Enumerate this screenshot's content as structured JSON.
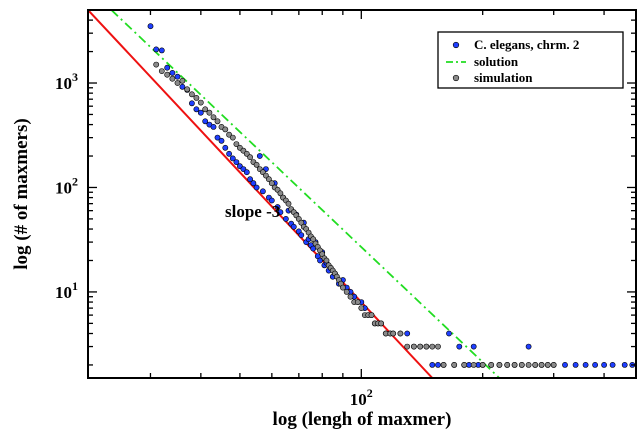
{
  "chart_data": {
    "type": "scatter",
    "xlabel": "log (lengh of maxmer)",
    "ylabel": "log (# of maxmers)",
    "xscale": "log",
    "yscale": "log",
    "xlim": [
      21,
      480
    ],
    "ylim": [
      1.5,
      5000
    ],
    "x_tick_labels": [
      {
        "value": 100,
        "base": "10",
        "exp": "2"
      }
    ],
    "y_tick_labels": [
      {
        "value": 10,
        "base": "10",
        "exp": "1"
      },
      {
        "value": 100,
        "base": "10",
        "exp": "2"
      },
      {
        "value": 1000,
        "base": "10",
        "exp": "3"
      }
    ],
    "grid": false,
    "legend_position": "top-right",
    "annotations": [
      {
        "text": "slope -3",
        "x": 60,
        "y": 55
      }
    ],
    "series": [
      {
        "name": "C. elegans, chrm. 2",
        "kind": "scatter",
        "color": "#1f3fff",
        "points": [
          [
            30,
            3500
          ],
          [
            31,
            2100
          ],
          [
            32,
            2050
          ],
          [
            33,
            1400
          ],
          [
            34,
            1250
          ],
          [
            35,
            1150
          ],
          [
            36,
            920
          ],
          [
            37,
            860
          ],
          [
            38,
            640
          ],
          [
            39,
            560
          ],
          [
            40,
            520
          ],
          [
            41,
            430
          ],
          [
            42,
            400
          ],
          [
            43,
            380
          ],
          [
            44,
            300
          ],
          [
            45,
            280
          ],
          [
            46,
            240
          ],
          [
            47,
            210
          ],
          [
            48,
            190
          ],
          [
            49,
            175
          ],
          [
            50,
            160
          ],
          [
            51,
            150
          ],
          [
            52,
            140
          ],
          [
            53,
            120
          ],
          [
            54,
            110
          ],
          [
            55,
            100
          ],
          [
            56,
            200
          ],
          [
            57,
            92
          ],
          [
            58,
            150
          ],
          [
            59,
            80
          ],
          [
            60,
            75
          ],
          [
            61,
            110
          ],
          [
            62,
            65
          ],
          [
            63,
            58
          ],
          [
            64,
            80
          ],
          [
            65,
            50
          ],
          [
            66,
            60
          ],
          [
            67,
            45
          ],
          [
            68,
            42
          ],
          [
            69,
            55
          ],
          [
            70,
            38
          ],
          [
            71,
            35
          ],
          [
            72,
            46
          ],
          [
            73,
            30
          ],
          [
            74,
            32
          ],
          [
            75,
            28
          ],
          [
            76,
            26
          ],
          [
            77,
            30
          ],
          [
            78,
            22
          ],
          [
            79,
            20
          ],
          [
            80,
            24
          ],
          [
            81,
            18
          ],
          [
            82,
            19
          ],
          [
            83,
            16
          ],
          [
            84,
            17
          ],
          [
            85,
            14
          ],
          [
            86,
            15
          ],
          [
            88,
            12
          ],
          [
            90,
            13
          ],
          [
            92,
            11
          ],
          [
            94,
            10
          ],
          [
            96,
            9
          ],
          [
            98,
            8
          ],
          [
            100,
            8
          ],
          [
            102,
            7
          ],
          [
            104,
            6
          ],
          [
            106,
            6
          ],
          [
            108,
            5
          ],
          [
            110,
            5
          ],
          [
            112,
            5
          ],
          [
            115,
            4
          ],
          [
            118,
            4
          ],
          [
            120,
            4
          ],
          [
            125,
            4
          ],
          [
            130,
            4
          ],
          [
            135,
            3
          ],
          [
            140,
            3
          ],
          [
            145,
            3
          ],
          [
            150,
            2
          ],
          [
            155,
            2
          ],
          [
            160,
            2
          ],
          [
            165,
            4
          ],
          [
            170,
            2
          ],
          [
            175,
            3
          ],
          [
            180,
            2
          ],
          [
            185,
            2
          ],
          [
            190,
            3
          ],
          [
            195,
            2
          ],
          [
            200,
            2
          ],
          [
            210,
            2
          ],
          [
            220,
            2
          ],
          [
            230,
            2
          ],
          [
            240,
            2
          ],
          [
            250,
            2
          ],
          [
            260,
            3
          ],
          [
            270,
            2
          ],
          [
            280,
            2
          ],
          [
            290,
            2
          ],
          [
            300,
            2
          ],
          [
            320,
            2
          ],
          [
            340,
            2
          ],
          [
            360,
            2
          ],
          [
            380,
            2
          ],
          [
            400,
            2
          ],
          [
            420,
            2
          ],
          [
            450,
            2
          ],
          [
            470,
            2
          ]
        ]
      },
      {
        "name": "solution",
        "kind": "line",
        "color": "#22dd22",
        "dashed": true,
        "points": [
          [
            24,
            5000
          ],
          [
            220,
            1.5
          ]
        ]
      },
      {
        "name": "simulation",
        "kind": "scatter",
        "color": "#8a8a8a",
        "points": [
          [
            31,
            1500
          ],
          [
            32,
            1300
          ],
          [
            33,
            1200
          ],
          [
            34,
            1100
          ],
          [
            35,
            1000
          ],
          [
            36,
            1050
          ],
          [
            37,
            870
          ],
          [
            38,
            780
          ],
          [
            39,
            720
          ],
          [
            40,
            650
          ],
          [
            41,
            560
          ],
          [
            42,
            520
          ],
          [
            43,
            470
          ],
          [
            44,
            430
          ],
          [
            45,
            380
          ],
          [
            46,
            360
          ],
          [
            47,
            320
          ],
          [
            48,
            300
          ],
          [
            49,
            260
          ],
          [
            50,
            240
          ],
          [
            51,
            225
          ],
          [
            52,
            210
          ],
          [
            53,
            195
          ],
          [
            54,
            175
          ],
          [
            55,
            165
          ],
          [
            56,
            150
          ],
          [
            57,
            140
          ],
          [
            58,
            130
          ],
          [
            59,
            120
          ],
          [
            60,
            110
          ],
          [
            61,
            100
          ],
          [
            62,
            95
          ],
          [
            63,
            88
          ],
          [
            64,
            80
          ],
          [
            65,
            75
          ],
          [
            66,
            70
          ],
          [
            67,
            62
          ],
          [
            68,
            58
          ],
          [
            69,
            54
          ],
          [
            70,
            50
          ],
          [
            71,
            46
          ],
          [
            72,
            42
          ],
          [
            73,
            40
          ],
          [
            74,
            37
          ],
          [
            75,
            34
          ],
          [
            76,
            32
          ],
          [
            77,
            29
          ],
          [
            78,
            27
          ],
          [
            79,
            25
          ],
          [
            80,
            23
          ],
          [
            81,
            21
          ],
          [
            82,
            20
          ],
          [
            83,
            18
          ],
          [
            84,
            17
          ],
          [
            85,
            16
          ],
          [
            86,
            15
          ],
          [
            87,
            14
          ],
          [
            88,
            13
          ],
          [
            89,
            12
          ],
          [
            90,
            11
          ],
          [
            92,
            10
          ],
          [
            94,
            9
          ],
          [
            96,
            8
          ],
          [
            98,
            8
          ],
          [
            100,
            7
          ],
          [
            102,
            6
          ],
          [
            104,
            6
          ],
          [
            106,
            6
          ],
          [
            108,
            5
          ],
          [
            110,
            5
          ],
          [
            112,
            5
          ],
          [
            115,
            4
          ],
          [
            118,
            4
          ],
          [
            120,
            4
          ],
          [
            125,
            4
          ],
          [
            130,
            3
          ],
          [
            135,
            3
          ],
          [
            140,
            3
          ],
          [
            145,
            3
          ],
          [
            150,
            3
          ],
          [
            155,
            3
          ],
          [
            160,
            2
          ],
          [
            170,
            2
          ],
          [
            180,
            2
          ],
          [
            190,
            2
          ],
          [
            200,
            2
          ],
          [
            210,
            2
          ],
          [
            220,
            2
          ],
          [
            230,
            2
          ],
          [
            240,
            2
          ],
          [
            250,
            2
          ],
          [
            260,
            2
          ],
          [
            270,
            2
          ],
          [
            280,
            2
          ],
          [
            290,
            2
          ],
          [
            300,
            2
          ]
        ]
      },
      {
        "name": "",
        "kind": "line",
        "color": "#ee1111",
        "dashed": false,
        "points": [
          [
            21,
            5000
          ],
          [
            150,
            1.5
          ]
        ]
      }
    ]
  }
}
